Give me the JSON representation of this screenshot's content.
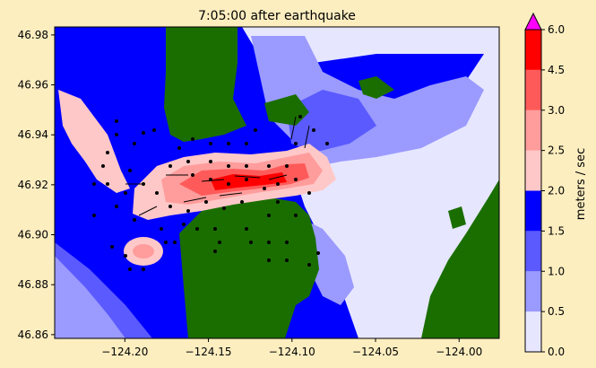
{
  "chart_data": {
    "type": "heatmap",
    "title": "7:05:00 after earthquake",
    "x_ticks": [
      -124.2,
      -124.15,
      -124.1,
      -124.05,
      -124.0
    ],
    "x_tick_labels": [
      "−124.20",
      "−124.15",
      "−124.10",
      "−124.05",
      "−124.00"
    ],
    "y_ticks": [
      46.86,
      46.88,
      46.9,
      46.92,
      46.94,
      46.96,
      46.98
    ],
    "y_tick_labels": [
      "46.86",
      "46.88",
      "46.90",
      "46.92",
      "46.94",
      "46.96",
      "46.98"
    ],
    "xlim": [
      -124.242,
      -123.976
    ],
    "ylim": [
      46.8585,
      46.9832
    ],
    "colorbar": {
      "label": "meters / sec",
      "levels": [
        0.0,
        0.5,
        1.0,
        1.5,
        2.0,
        2.5,
        3.0,
        4.5,
        6.0
      ],
      "level_labels": [
        "0.0",
        "0.5",
        "1.0",
        "1.5",
        "2.0",
        "2.5",
        "3.0",
        "4.5",
        "6.0"
      ],
      "colors": [
        "#e6e6ff",
        "#9a9aff",
        "#5a5aff",
        "#0000ff",
        "#ffc8c8",
        "#ff9c9c",
        "#ff5a5a",
        "#ff0000"
      ],
      "extend_max_color": "#ff00ff"
    },
    "land_color": "#1a6e00"
  }
}
